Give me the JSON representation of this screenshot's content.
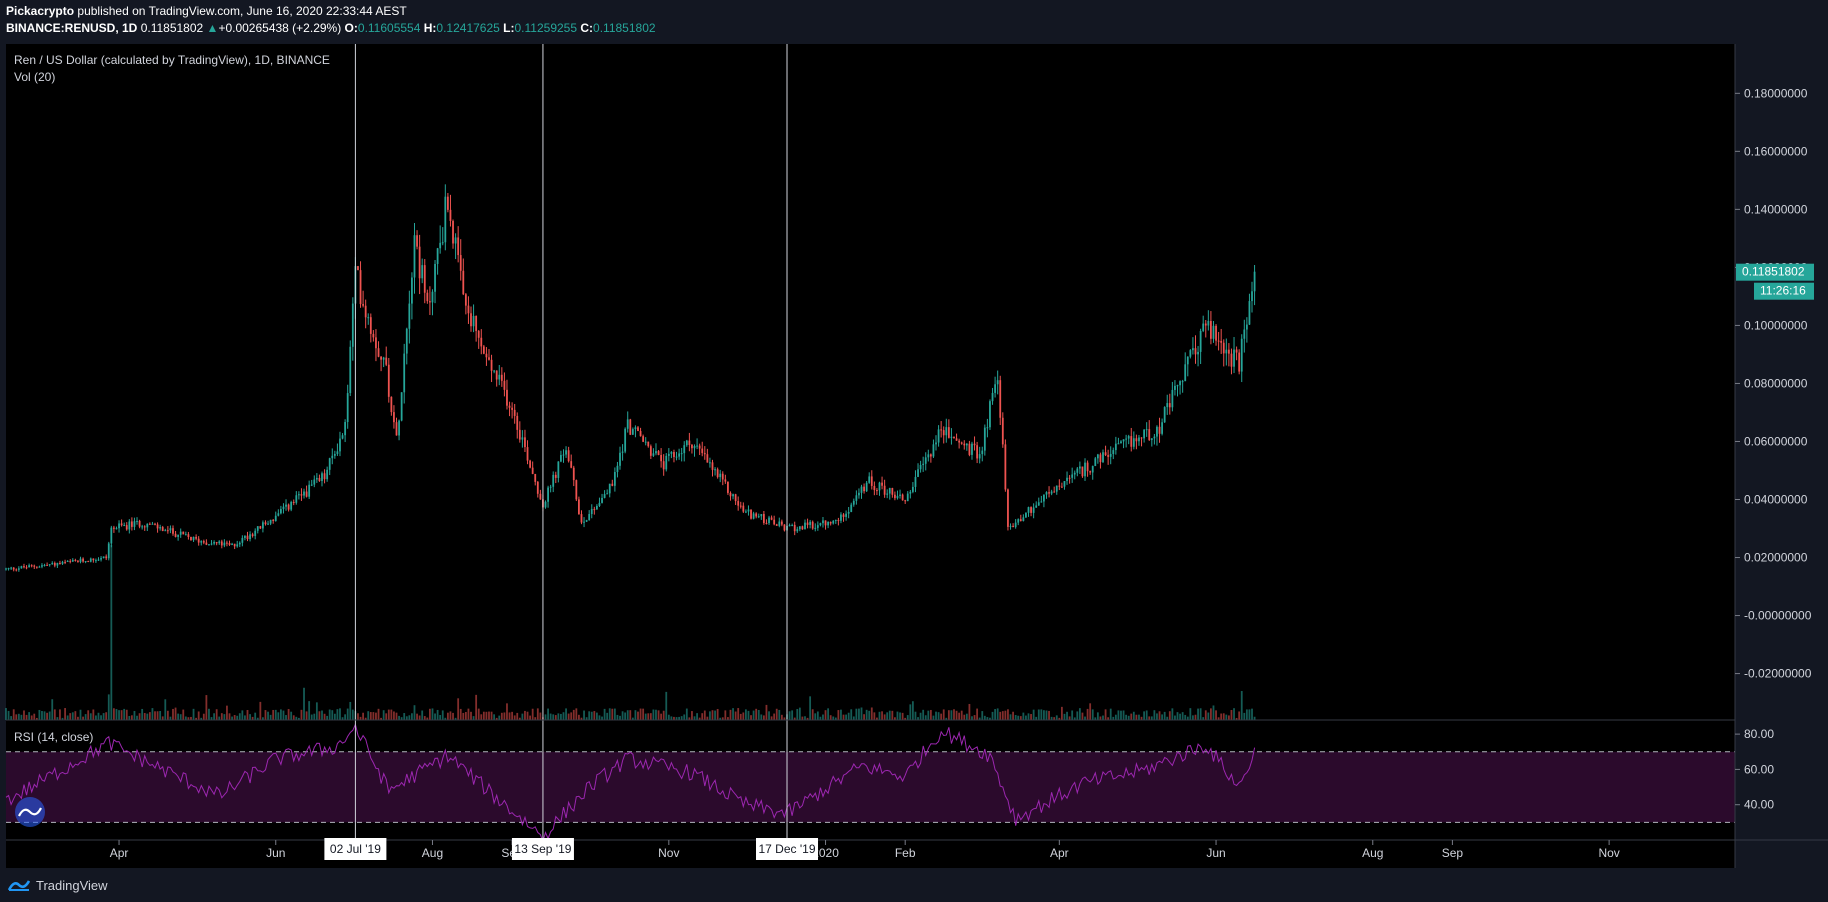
{
  "header": {
    "author": "Pickacrypto",
    "published": "published on TradingView.com, June 16, 2020 22:33:44 AEST",
    "symbol": "BINANCE:RENUSD, 1D",
    "last": "0.11851802",
    "up_arrow": "▲",
    "change": "+0.00265438 (+2.29%)",
    "o_label": "O:",
    "o_value": "0.11605554",
    "h_label": "H:",
    "h_value": "0.12417625",
    "l_label": "L:",
    "l_value": "0.11259255",
    "c_label": "C:",
    "c_value": "0.11851802"
  },
  "legend": {
    "title": "Ren / US Dollar (calculated by TradingView), 1D, BINANCE",
    "volume": "Vol (20)",
    "rsi": "RSI (14, close)"
  },
  "price_badge": "0.11851802",
  "countdown_badge": "11:26:16",
  "footer": {
    "brand": "TradingView"
  },
  "colors": {
    "up": "#26a69a",
    "down": "#ef5350",
    "rsi": "#9c27b0",
    "background": "#000000"
  },
  "chart_data": [
    {
      "type": "candlestick",
      "title": "Ren / US Dollar (calculated by TradingView), 1D, BINANCE",
      "y_ticks": [
        "0.18000000",
        "0.16000000",
        "0.14000000",
        "0.12000000",
        "0.10000000",
        "0.08000000",
        "0.06000000",
        "0.04000000",
        "0.02000000",
        "-0.00000000",
        "-0.02000000"
      ],
      "ylim": [
        -0.036,
        0.197
      ],
      "x_ticks": [
        "Apr",
        "Jun",
        "Aug",
        "Sep",
        "Nov",
        "2020",
        "Feb",
        "Apr",
        "Jun",
        "Aug",
        "Sep",
        "Nov"
      ],
      "x_tick_dates": [
        "2019-04-01",
        "2019-06-01",
        "2019-08-01",
        "2019-09-01",
        "2019-11-01",
        "2020-01-01",
        "2020-02-01",
        "2020-04-01",
        "2020-06-01",
        "2020-08-01",
        "2020-09-01",
        "2020-11-01"
      ],
      "xlim": [
        "2019-02-16",
        "2020-12-20"
      ],
      "last_date": "2020-06-16",
      "close_path": [
        [
          "2019-02-16",
          0.016
        ],
        [
          "2019-03-10",
          0.018
        ],
        [
          "2019-03-27",
          0.02
        ],
        [
          "2019-03-29",
          0.03
        ],
        [
          "2019-04-10",
          0.032
        ],
        [
          "2019-05-01",
          0.026
        ],
        [
          "2019-05-15",
          0.024
        ],
        [
          "2019-06-01",
          0.034
        ],
        [
          "2019-06-20",
          0.048
        ],
        [
          "2019-06-28",
          0.065
        ],
        [
          "2019-07-02",
          0.118
        ],
        [
          "2019-07-08",
          0.1
        ],
        [
          "2019-07-14",
          0.085
        ],
        [
          "2019-07-18",
          0.06
        ],
        [
          "2019-07-25",
          0.132
        ],
        [
          "2019-07-30",
          0.105
        ],
        [
          "2019-08-07",
          0.144
        ],
        [
          "2019-08-13",
          0.108
        ],
        [
          "2019-08-22",
          0.088
        ],
        [
          "2019-09-01",
          0.072
        ],
        [
          "2019-09-13",
          0.038
        ],
        [
          "2019-09-22",
          0.058
        ],
        [
          "2019-09-28",
          0.032
        ],
        [
          "2019-10-10",
          0.045
        ],
        [
          "2019-10-16",
          0.066
        ],
        [
          "2019-10-30",
          0.052
        ],
        [
          "2019-11-10",
          0.06
        ],
        [
          "2019-11-30",
          0.036
        ],
        [
          "2019-12-17",
          0.03
        ],
        [
          "2020-01-05",
          0.032
        ],
        [
          "2020-01-18",
          0.046
        ],
        [
          "2020-02-01",
          0.04
        ],
        [
          "2020-02-15",
          0.064
        ],
        [
          "2020-03-01",
          0.055
        ],
        [
          "2020-03-08",
          0.084
        ],
        [
          "2020-03-12",
          0.03
        ],
        [
          "2020-03-25",
          0.04
        ],
        [
          "2020-04-10",
          0.05
        ],
        [
          "2020-04-25",
          0.058
        ],
        [
          "2020-05-10",
          0.065
        ],
        [
          "2020-05-28",
          0.1
        ],
        [
          "2020-06-10",
          0.086
        ],
        [
          "2020-06-16",
          0.118
        ]
      ],
      "annotations": [
        {
          "type": "vertical_line",
          "date": "2019-07-02",
          "label": "02 Jul '19"
        },
        {
          "type": "vertical_line",
          "date": "2019-09-13",
          "label": "13 Sep '19"
        },
        {
          "type": "vertical_line",
          "date": "2019-12-17",
          "label": "17 Dec '19"
        }
      ],
      "last_price": 0.11851802
    },
    {
      "type": "bar",
      "title": "Vol (20)",
      "note": "daily volume bars overlaid at bottom of price pane"
    },
    {
      "type": "line",
      "title": "RSI (14, close)",
      "y_ticks": [
        "80.00",
        "60.00",
        "40.00"
      ],
      "ylim": [
        20,
        88
      ],
      "bands": [
        70,
        30
      ],
      "path": [
        [
          "2019-02-16",
          42
        ],
        [
          "2019-03-10",
          60
        ],
        [
          "2019-03-28",
          75
        ],
        [
          "2019-04-15",
          62
        ],
        [
          "2019-05-10",
          45
        ],
        [
          "2019-06-01",
          66
        ],
        [
          "2019-06-25",
          73
        ],
        [
          "2019-07-02",
          84
        ],
        [
          "2019-07-15",
          48
        ],
        [
          "2019-08-07",
          68
        ],
        [
          "2019-08-25",
          45
        ],
        [
          "2019-09-13",
          22
        ],
        [
          "2019-10-01",
          50
        ],
        [
          "2019-10-16",
          66
        ],
        [
          "2019-11-10",
          58
        ],
        [
          "2019-12-01",
          40
        ],
        [
          "2019-12-17",
          35
        ],
        [
          "2020-01-15",
          62
        ],
        [
          "2020-02-01",
          56
        ],
        [
          "2020-02-15",
          82
        ],
        [
          "2020-03-05",
          68
        ],
        [
          "2020-03-15",
          32
        ],
        [
          "2020-04-10",
          52
        ],
        [
          "2020-05-05",
          60
        ],
        [
          "2020-05-28",
          74
        ],
        [
          "2020-06-10",
          50
        ],
        [
          "2020-06-16",
          70
        ]
      ]
    }
  ]
}
